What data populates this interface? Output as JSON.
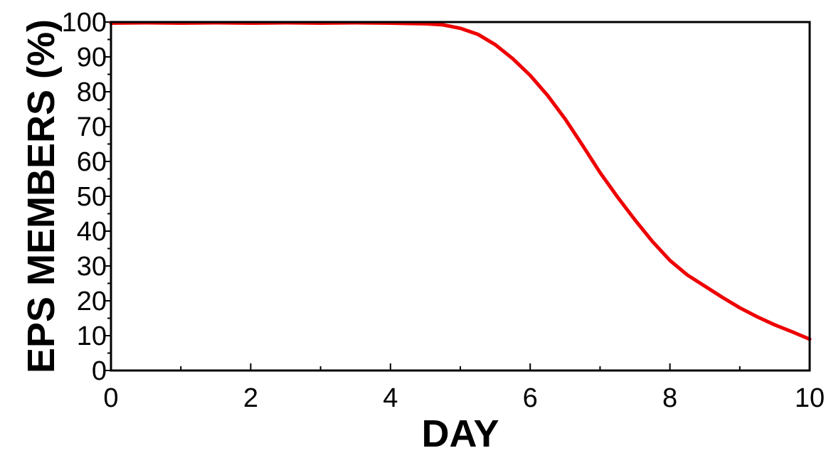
{
  "chart_data": {
    "type": "line",
    "title": "",
    "xlabel": "DAY",
    "ylabel": "EPS MEMBERS (%)",
    "xlim": [
      0,
      10
    ],
    "ylim": [
      0,
      100
    ],
    "x_ticks": [
      0,
      2,
      4,
      6,
      8,
      10
    ],
    "x_tick_labels": [
      "0",
      "2",
      "4",
      "6",
      "8",
      "10"
    ],
    "y_ticks": [
      0,
      10,
      20,
      30,
      40,
      50,
      60,
      70,
      80,
      90,
      100
    ],
    "y_tick_labels": [
      "0",
      "10",
      "20",
      "30",
      "40",
      "50",
      "60",
      "70",
      "80",
      "90",
      "100"
    ],
    "grid": false,
    "legend": "none",
    "series": [
      {
        "color": "#ee0000",
        "x": [
          0,
          0.5,
          1,
          1.5,
          2,
          2.5,
          3,
          3.5,
          4,
          4.25,
          4.5,
          4.75,
          5,
          5.25,
          5.5,
          5.75,
          6,
          6.25,
          6.5,
          6.75,
          7,
          7.25,
          7.5,
          7.75,
          8,
          8.25,
          8.5,
          8.75,
          9,
          9.25,
          9.5,
          9.75,
          10
        ],
        "y": [
          99.7,
          99.8,
          99.7,
          99.8,
          99.7,
          99.8,
          99.7,
          99.8,
          99.7,
          99.6,
          99.5,
          99.2,
          98.2,
          96.5,
          93.5,
          89.5,
          84.7,
          78.9,
          72.2,
          64.6,
          56.8,
          49.8,
          43.2,
          37.0,
          31.6,
          27.4,
          24.2,
          21.0,
          18.0,
          15.4,
          13.1,
          11.1,
          9.0
        ]
      }
    ]
  }
}
